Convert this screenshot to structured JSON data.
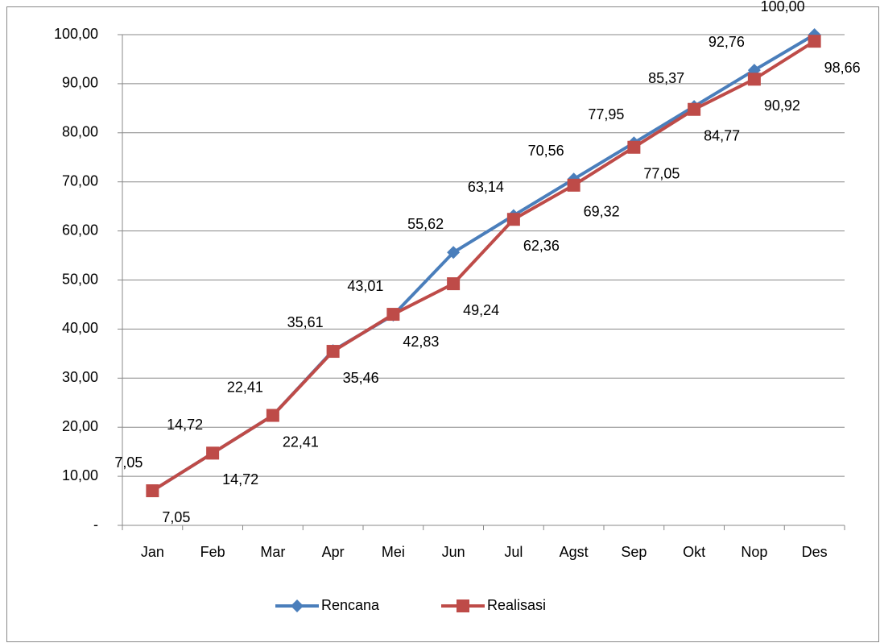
{
  "chart_data": {
    "type": "line",
    "categories": [
      "Jan",
      "Feb",
      "Mar",
      "Apr",
      "Mei",
      "Jun",
      "Jul",
      "Agst",
      "Sep",
      "Okt",
      "Nop",
      "Des"
    ],
    "series": [
      {
        "name": "Rencana",
        "color": "#4a7ebb",
        "marker": "diamond",
        "values": [
          7.05,
          14.72,
          22.41,
          35.61,
          42.83,
          55.62,
          63.14,
          70.56,
          77.95,
          85.37,
          92.76,
          100.0
        ],
        "value_labels": [
          "7,05",
          "14,72",
          "22,41",
          "35,61",
          "42,83",
          "55,62",
          "63,14",
          "70,56",
          "77,95",
          "85,37",
          "92,76",
          "100,00"
        ]
      },
      {
        "name": "Realisasi",
        "color": "#be4b48",
        "marker": "square",
        "values": [
          7.05,
          14.72,
          22.41,
          35.46,
          43.01,
          49.24,
          62.36,
          69.32,
          77.05,
          84.77,
          90.92,
          98.66
        ],
        "value_labels": [
          "7,05",
          "14,72",
          "22,41",
          "35,46",
          "43,01",
          "49,24",
          "62,36",
          "69,32",
          "77,05",
          "84,77",
          "90,92",
          "98,66"
        ]
      }
    ],
    "ylim": [
      0,
      100
    ],
    "yticks": [
      {
        "value": 0,
        "label": "-"
      },
      {
        "value": 10,
        "label": "10,00"
      },
      {
        "value": 20,
        "label": "20,00"
      },
      {
        "value": 30,
        "label": "30,00"
      },
      {
        "value": 40,
        "label": "40,00"
      },
      {
        "value": 50,
        "label": "50,00"
      },
      {
        "value": 60,
        "label": "60,00"
      },
      {
        "value": 70,
        "label": "70,00"
      },
      {
        "value": 80,
        "label": "80,00"
      },
      {
        "value": 90,
        "label": "90,00"
      },
      {
        "value": 100,
        "label": "100,00"
      }
    ],
    "grid": true,
    "legend": "bottom"
  }
}
